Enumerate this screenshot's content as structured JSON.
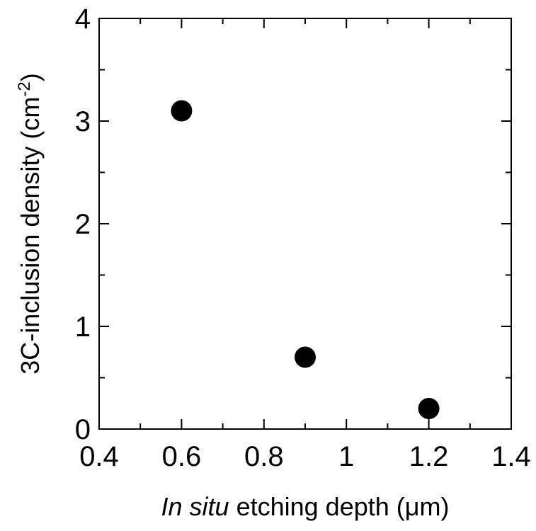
{
  "chart_data": {
    "type": "scatter",
    "title": "",
    "xlabel_parts": [
      {
        "text": "In situ",
        "italic": true
      },
      {
        "text": " etching depth (μm)",
        "italic": false
      }
    ],
    "ylabel_parts": [
      {
        "text": "3C-inclusion density (cm",
        "sup": false
      },
      {
        "text": "-2",
        "sup": true
      },
      {
        "text": ")",
        "sup": false
      }
    ],
    "xlim": [
      0.4,
      1.4
    ],
    "ylim": [
      0,
      4
    ],
    "x_ticks": [
      0.4,
      0.6,
      0.8,
      1,
      1.2,
      1.4
    ],
    "x_tick_labels": [
      "0.4",
      "0.6",
      "0.8",
      "1",
      "1.2",
      "1.4"
    ],
    "y_ticks": [
      0,
      1,
      2,
      3,
      4
    ],
    "y_tick_labels": [
      "0",
      "1",
      "2",
      "3",
      "4"
    ],
    "x_minor_step": 0.1,
    "y_minor_step": 0.5,
    "grid": false,
    "legend": "none",
    "marker_color": "#000000",
    "series": [
      {
        "x": [
          0.6,
          0.9,
          1.2
        ],
        "y": [
          3.1,
          0.7,
          0.2
        ]
      }
    ]
  }
}
